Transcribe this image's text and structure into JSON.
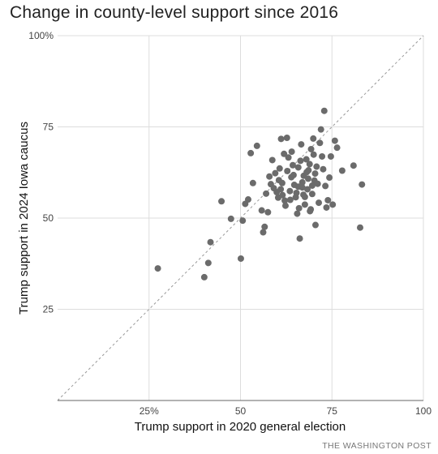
{
  "chart_data": {
    "type": "scatter",
    "title": "Change in county-level support since 2016",
    "xlabel": "Trump support in 2020 general election",
    "ylabel": "Trump support in 2024 Iowa caucus",
    "xlim": [
      0,
      100
    ],
    "ylim": [
      0,
      100
    ],
    "x_ticks": [
      {
        "value": 25,
        "label": "25%"
      },
      {
        "value": 50,
        "label": "50"
      },
      {
        "value": 75,
        "label": "75"
      },
      {
        "value": 100,
        "label": "100"
      }
    ],
    "y_ticks": [
      {
        "value": 25,
        "label": "25"
      },
      {
        "value": 50,
        "label": "50"
      },
      {
        "value": 75,
        "label": "75"
      },
      {
        "value": 100,
        "label": "100%"
      }
    ],
    "grid": true,
    "reference_line": "y = x",
    "credit": "THE WASHINGTON POST",
    "colors": {
      "points": "#6b6b6b",
      "grid": "#dddddd",
      "diagonal": "#999999"
    },
    "points": [
      [
        27.4,
        36.2
      ],
      [
        40.1,
        33.8
      ],
      [
        41.2,
        37.7
      ],
      [
        41.8,
        43.4
      ],
      [
        44.8,
        54.6
      ],
      [
        47.4,
        49.8
      ],
      [
        50.1,
        38.9
      ],
      [
        50.6,
        49.3
      ],
      [
        51.3,
        53.9
      ],
      [
        52.1,
        55.1
      ],
      [
        52.8,
        67.8
      ],
      [
        53.4,
        59.6
      ],
      [
        54.5,
        69.8
      ],
      [
        55.8,
        52.1
      ],
      [
        56.2,
        46.1
      ],
      [
        56.6,
        47.6
      ],
      [
        57.0,
        56.7
      ],
      [
        57.5,
        51.6
      ],
      [
        57.9,
        61.4
      ],
      [
        58.3,
        59.3
      ],
      [
        58.7,
        65.9
      ],
      [
        59.1,
        58.2
      ],
      [
        59.5,
        62.3
      ],
      [
        59.9,
        57.1
      ],
      [
        60.3,
        55.6
      ],
      [
        60.7,
        63.6
      ],
      [
        61.1,
        71.7
      ],
      [
        61.5,
        56.3
      ],
      [
        61.9,
        67.6
      ],
      [
        62.3,
        53.4
      ],
      [
        62.7,
        72.0
      ],
      [
        63.1,
        66.6
      ],
      [
        63.5,
        57.4
      ],
      [
        63.9,
        61.2
      ],
      [
        64.3,
        64.5
      ],
      [
        64.7,
        59.1
      ],
      [
        65.1,
        55.7
      ],
      [
        65.5,
        51.2
      ],
      [
        65.8,
        63.9
      ],
      [
        66.2,
        44.4
      ],
      [
        66.6,
        70.2
      ],
      [
        66.9,
        58.4
      ],
      [
        67.3,
        61.6
      ],
      [
        67.6,
        53.7
      ],
      [
        68.0,
        66.1
      ],
      [
        68.3,
        57.9
      ],
      [
        68.6,
        63.1
      ],
      [
        69.0,
        51.9
      ],
      [
        69.3,
        68.9
      ],
      [
        69.6,
        56.6
      ],
      [
        69.9,
        71.8
      ],
      [
        70.2,
        60.3
      ],
      [
        70.5,
        48.1
      ],
      [
        70.8,
        64.1
      ],
      [
        71.1,
        59.4
      ],
      [
        71.4,
        54.2
      ],
      [
        71.7,
        70.6
      ],
      [
        72.0,
        74.3
      ],
      [
        72.3,
        66.9
      ],
      [
        72.6,
        63.4
      ],
      [
        72.9,
        79.4
      ],
      [
        73.2,
        58.8
      ],
      [
        73.5,
        52.9
      ],
      [
        73.9,
        54.9
      ],
      [
        74.3,
        61.1
      ],
      [
        74.7,
        66.9
      ],
      [
        75.2,
        53.7
      ],
      [
        75.8,
        71.2
      ],
      [
        76.4,
        69.3
      ],
      [
        77.8,
        63.0
      ],
      [
        80.9,
        64.4
      ],
      [
        82.7,
        47.4
      ],
      [
        83.2,
        59.2
      ],
      [
        64.0,
        68.2
      ],
      [
        65.8,
        58.6
      ],
      [
        66.9,
        59.8
      ],
      [
        67.2,
        56.4
      ],
      [
        67.6,
        55.8
      ],
      [
        68.1,
        62.6
      ],
      [
        68.5,
        60.8
      ],
      [
        68.9,
        64.8
      ],
      [
        69.2,
        52.4
      ],
      [
        69.6,
        58.9
      ],
      [
        70.0,
        67.4
      ],
      [
        70.4,
        62.2
      ],
      [
        60.5,
        60.4
      ],
      [
        61.4,
        59.6
      ],
      [
        62.1,
        54.8
      ],
      [
        62.8,
        62.9
      ],
      [
        63.6,
        55.0
      ],
      [
        64.5,
        61.8
      ],
      [
        65.3,
        56.9
      ],
      [
        66.4,
        65.7
      ],
      [
        66.0,
        52.7
      ],
      [
        61.0,
        57.9
      ]
    ]
  }
}
